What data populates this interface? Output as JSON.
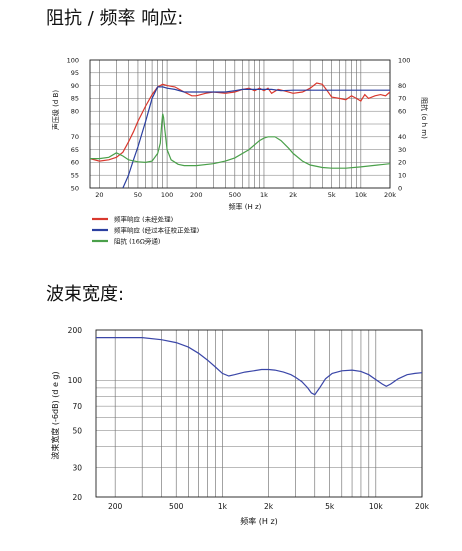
{
  "titles": {
    "response": "阻抗 / 频率 响应:",
    "beamwidth": "波束宽度:"
  },
  "chart_data": [
    {
      "type": "line",
      "xscale": "log",
      "xlim": [
        16,
        20000
      ],
      "ylim": [
        50,
        100
      ],
      "y2lim": [
        0,
        100
      ],
      "xlabel": "频率 (H z)",
      "ylabel": "声压级 (d B)",
      "y2label": "阻抗 (o h m)",
      "x_ticks": [
        20,
        50,
        100,
        200,
        500,
        1000,
        2000,
        5000,
        10000,
        20000
      ],
      "x_tick_labels": [
        "20",
        "50",
        "100",
        "200",
        "500",
        "1k",
        "2k",
        "5k",
        "10k",
        "20k"
      ],
      "y_ticks": [
        50,
        55,
        60,
        65,
        70,
        80,
        85,
        90,
        95,
        100
      ],
      "y_tick_labels": [
        "50",
        "55",
        "60",
        "65",
        "70",
        "80",
        "85",
        "90",
        "95",
        "100"
      ],
      "y2_ticks": [
        0,
        10,
        20,
        30,
        40,
        60,
        70,
        80,
        100
      ],
      "y2_tick_labels": [
        "0",
        "10",
        "20",
        "30",
        "40",
        "60",
        "70",
        "80",
        "100"
      ],
      "grid": true,
      "legend_position": "bottom-left",
      "series": [
        {
          "name": "频率响应 (未经处理)",
          "color": "#d9382e",
          "axis": "left",
          "points": [
            [
              16,
              61.5
            ],
            [
              20,
              60.5
            ],
            [
              25,
              61
            ],
            [
              30,
              62
            ],
            [
              35,
              64
            ],
            [
              40,
              68
            ],
            [
              45,
              72
            ],
            [
              50,
              76
            ],
            [
              60,
              82
            ],
            [
              70,
              86.5
            ],
            [
              80,
              89.5
            ],
            [
              90,
              90.5
            ],
            [
              100,
              90
            ],
            [
              120,
              89.5
            ],
            [
              150,
              87.5
            ],
            [
              180,
              86
            ],
            [
              200,
              86
            ],
            [
              250,
              87
            ],
            [
              300,
              87.5
            ],
            [
              400,
              87
            ],
            [
              500,
              87.5
            ],
            [
              600,
              88.5
            ],
            [
              700,
              89
            ],
            [
              800,
              88
            ],
            [
              900,
              89
            ],
            [
              1000,
              88
            ],
            [
              1100,
              89
            ],
            [
              1200,
              87
            ],
            [
              1400,
              88.5
            ],
            [
              1600,
              88
            ],
            [
              2000,
              87
            ],
            [
              2500,
              87.5
            ],
            [
              3000,
              89
            ],
            [
              3500,
              91
            ],
            [
              4000,
              90.5
            ],
            [
              4500,
              88
            ],
            [
              5000,
              85.5
            ],
            [
              6000,
              85
            ],
            [
              7000,
              84.5
            ],
            [
              8000,
              86
            ],
            [
              9000,
              85
            ],
            [
              10000,
              84
            ],
            [
              11000,
              86.5
            ],
            [
              12000,
              85
            ],
            [
              14000,
              86
            ],
            [
              16000,
              86.5
            ],
            [
              18000,
              86
            ],
            [
              20000,
              87.5
            ]
          ]
        },
        {
          "name": "频率响应 (经过本征校正处理)",
          "color": "#2b3fa0",
          "axis": "left",
          "points": [
            [
              35,
              50
            ],
            [
              40,
              55
            ],
            [
              45,
              61
            ],
            [
              50,
              66
            ],
            [
              60,
              76
            ],
            [
              70,
              85
            ],
            [
              80,
              89.5
            ],
            [
              90,
              89.5
            ],
            [
              100,
              89
            ],
            [
              120,
              88.5
            ],
            [
              150,
              87.5
            ],
            [
              200,
              87.5
            ],
            [
              250,
              87.5
            ],
            [
              300,
              87.5
            ],
            [
              400,
              87.5
            ],
            [
              500,
              88
            ],
            [
              600,
              88.5
            ],
            [
              700,
              88.5
            ],
            [
              800,
              88.5
            ],
            [
              1000,
              88.5
            ],
            [
              1200,
              88.5
            ],
            [
              1500,
              88
            ],
            [
              2000,
              88.2
            ],
            [
              3000,
              88.2
            ],
            [
              5000,
              88.2
            ],
            [
              10000,
              88.2
            ],
            [
              20000,
              88.2
            ]
          ]
        },
        {
          "name": "阻抗 (16Ω旁通)",
          "color": "#4aa04a",
          "axis": "right",
          "points": [
            [
              16,
              23
            ],
            [
              20,
              23
            ],
            [
              25,
              24
            ],
            [
              30,
              27.5
            ],
            [
              35,
              25
            ],
            [
              40,
              22
            ],
            [
              50,
              20.5
            ],
            [
              60,
              20
            ],
            [
              70,
              21
            ],
            [
              80,
              27
            ],
            [
              85,
              35
            ],
            [
              88,
              50
            ],
            [
              90,
              58
            ],
            [
              92,
              55
            ],
            [
              95,
              45
            ],
            [
              100,
              30
            ],
            [
              110,
              22
            ],
            [
              130,
              18.5
            ],
            [
              150,
              17.5
            ],
            [
              200,
              17.5
            ],
            [
              300,
              19
            ],
            [
              400,
              21
            ],
            [
              500,
              23.5
            ],
            [
              700,
              30
            ],
            [
              900,
              37
            ],
            [
              1000,
              39
            ],
            [
              1100,
              40
            ],
            [
              1300,
              40
            ],
            [
              1500,
              37
            ],
            [
              1800,
              31
            ],
            [
              2000,
              27
            ],
            [
              2500,
              21
            ],
            [
              3000,
              18
            ],
            [
              4000,
              16
            ],
            [
              5000,
              15.5
            ],
            [
              7000,
              15.5
            ],
            [
              10000,
              16.5
            ],
            [
              15000,
              18
            ],
            [
              20000,
              19
            ]
          ]
        }
      ]
    },
    {
      "type": "line",
      "xscale": "log",
      "yscale": "log",
      "xlim": [
        150,
        20000
      ],
      "ylim": [
        20,
        200
      ],
      "xlabel": "频率 (H z)",
      "ylabel": "波束宽度 (-6dB)  (d e g)",
      "x_ticks": [
        200,
        500,
        1000,
        2000,
        5000,
        10000,
        20000
      ],
      "x_tick_labels": [
        "200",
        "500",
        "1k",
        "2k",
        "5k",
        "10k",
        "20k"
      ],
      "y_ticks": [
        20,
        30,
        50,
        70,
        100,
        200
      ],
      "y_tick_labels": [
        "20",
        "30",
        "50",
        "70",
        "100",
        "200"
      ],
      "grid": true,
      "series": [
        {
          "color": "#3a46a8",
          "points": [
            [
              150,
              180
            ],
            [
              300,
              180
            ],
            [
              400,
              175
            ],
            [
              500,
              168
            ],
            [
              600,
              158
            ],
            [
              700,
              145
            ],
            [
              800,
              132
            ],
            [
              900,
              120
            ],
            [
              1000,
              110
            ],
            [
              1100,
              106
            ],
            [
              1200,
              108
            ],
            [
              1400,
              112
            ],
            [
              1600,
              114
            ],
            [
              1800,
              116
            ],
            [
              2000,
              116
            ],
            [
              2200,
              115
            ],
            [
              2500,
              112
            ],
            [
              2800,
              108
            ],
            [
              3000,
              104
            ],
            [
              3300,
              98
            ],
            [
              3600,
              90
            ],
            [
              3800,
              84
            ],
            [
              4000,
              82
            ],
            [
              4300,
              90
            ],
            [
              4700,
              102
            ],
            [
              5200,
              110
            ],
            [
              6000,
              114
            ],
            [
              7000,
              115
            ],
            [
              8000,
              113
            ],
            [
              9000,
              108
            ],
            [
              10000,
              101
            ],
            [
              11000,
              95
            ],
            [
              11700,
              92
            ],
            [
              12500,
              95
            ],
            [
              14000,
              102
            ],
            [
              16000,
              108
            ],
            [
              18000,
              110
            ],
            [
              20000,
              111
            ]
          ]
        }
      ]
    }
  ]
}
